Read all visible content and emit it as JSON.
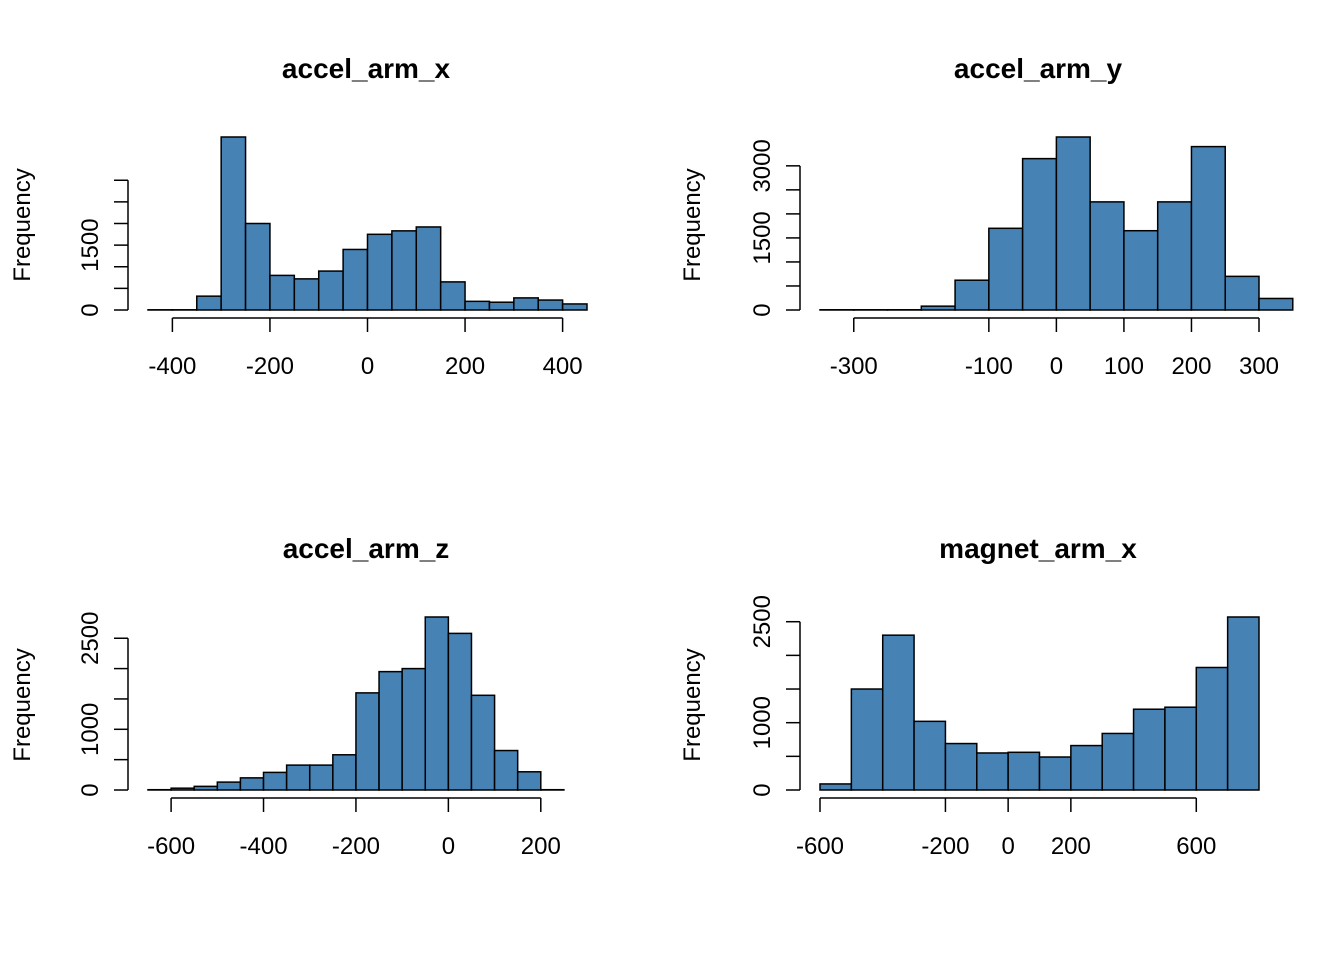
{
  "chart_data": [
    {
      "type": "bar",
      "title": "accel_arm_x",
      "ylabel": "Frequency",
      "xlabel": "",
      "bin_start": -450,
      "bin_width": 50,
      "values": [
        5,
        5,
        320,
        4000,
        2000,
        800,
        720,
        900,
        1400,
        1750,
        1830,
        1920,
        650,
        200,
        180,
        280,
        230,
        140
      ],
      "xticks": [
        -400,
        -200,
        0,
        200,
        400
      ],
      "yticks": [
        0,
        500,
        1000,
        1500,
        2000,
        2500,
        3000
      ],
      "yticks_labeled": [
        0,
        1500
      ],
      "xlim": [
        -450,
        450
      ],
      "ylim": [
        0,
        4000
      ]
    },
    {
      "type": "bar",
      "title": "accel_arm_y",
      "ylabel": "Frequency",
      "xlabel": "",
      "bin_start": -350,
      "bin_width": 50,
      "values": [
        5,
        5,
        5,
        80,
        620,
        1700,
        3150,
        3600,
        2250,
        1650,
        2250,
        3400,
        700,
        240
      ],
      "xticks": [
        -300,
        -100,
        0,
        100,
        200,
        300
      ],
      "yticks": [
        0,
        500,
        1000,
        1500,
        2000,
        2500,
        3000
      ],
      "yticks_labeled": [
        0,
        1500,
        3000
      ],
      "xlim": [
        -350,
        300
      ],
      "ylim": [
        0,
        3600
      ]
    },
    {
      "type": "bar",
      "title": "accel_arm_z",
      "ylabel": "Frequency",
      "xlabel": "",
      "bin_start": -650,
      "bin_width": 50,
      "values": [
        5,
        30,
        60,
        130,
        200,
        290,
        410,
        410,
        580,
        1600,
        1950,
        2000,
        2850,
        2580,
        1560,
        650,
        300,
        5
      ],
      "xticks": [
        -600,
        -400,
        -200,
        0,
        200
      ],
      "yticks": [
        0,
        500,
        1000,
        1500,
        2000,
        2500
      ],
      "yticks_labeled": [
        0,
        1000,
        2500
      ],
      "xlim": [
        -650,
        300
      ],
      "ylim": [
        0,
        2850
      ]
    },
    {
      "type": "bar",
      "title": "magnet_arm_x",
      "ylabel": "Frequency",
      "xlabel": "",
      "bin_start": -600,
      "bin_width": 100,
      "values": [
        90,
        1500,
        2300,
        1020,
        690,
        550,
        560,
        490,
        660,
        840,
        1200,
        1230,
        1820,
        2570
      ],
      "xticks": [
        -600,
        -200,
        0,
        200,
        600
      ],
      "yticks": [
        0,
        500,
        1000,
        1500,
        2000,
        2500
      ],
      "yticks_labeled": [
        0,
        1000,
        2500
      ],
      "xlim": [
        -600,
        800
      ],
      "ylim": [
        0,
        2570
      ]
    }
  ]
}
